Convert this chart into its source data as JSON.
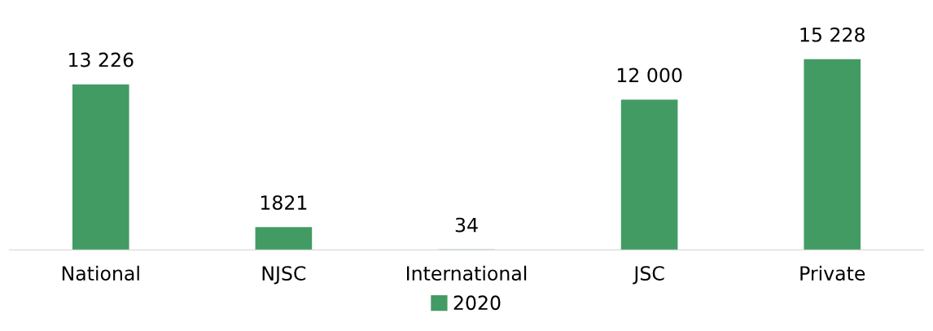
{
  "chart_data": {
    "type": "bar",
    "categories": [
      "National",
      "NJSC",
      "International",
      "JSC",
      "Private"
    ],
    "series": [
      {
        "name": "2020",
        "color": "#439b64",
        "values": [
          13226,
          1821,
          34,
          12000,
          15228
        ],
        "value_labels": [
          "13 226",
          "1821",
          "34",
          "12 000",
          "15 228"
        ]
      }
    ],
    "legend": "bottom",
    "grid": false
  }
}
